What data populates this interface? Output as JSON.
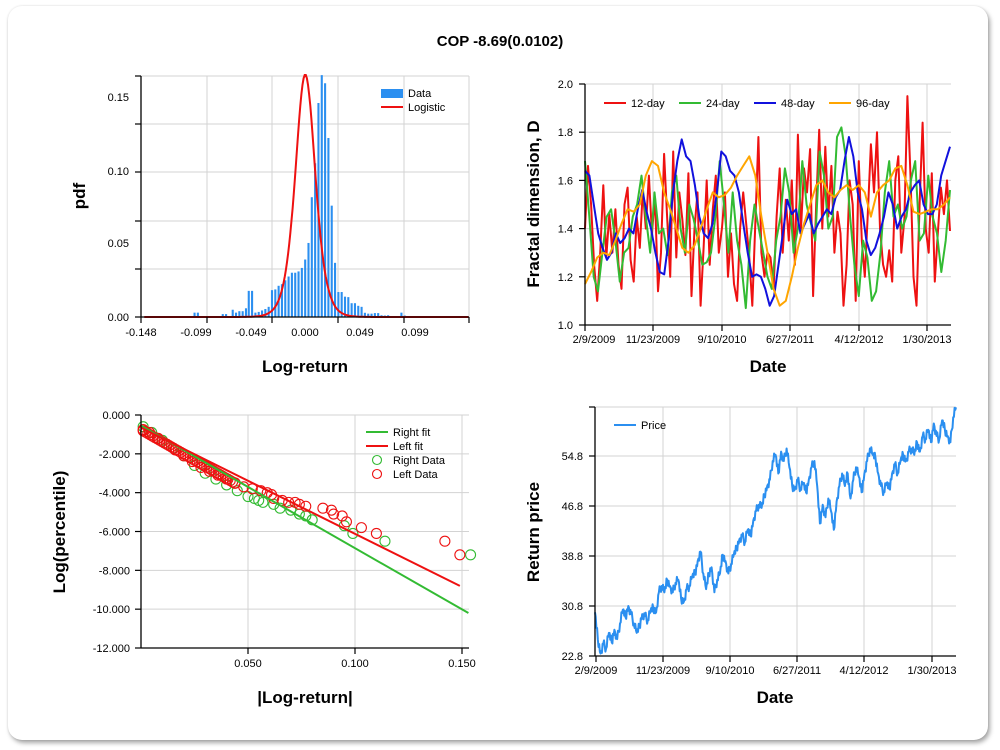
{
  "title": "COP -8.69(0.0102)",
  "chart_data": [
    {
      "id": "pdf",
      "type": "bar",
      "xlabel": "Log-return",
      "ylabel": "pdf",
      "xlim": [
        -0.148,
        0.1485
      ],
      "ylim": [
        0,
        0.166
      ],
      "x_tick_labels": [
        "-0.148",
        "-0.099",
        "-0.049",
        "0.000",
        "0.049",
        "0.099"
      ],
      "y_tick_labels": [
        "0.15",
        "0.10",
        "0.05",
        "0.00"
      ],
      "grid": true,
      "legend_position": "top-right",
      "legend": [
        "Data",
        "Logistic"
      ],
      "bin_width": 0.00297,
      "bins_x": [
        -0.0995,
        -0.0965,
        -0.074,
        -0.071,
        -0.065,
        -0.062,
        -0.059,
        -0.056,
        -0.053,
        -0.0505,
        -0.0475,
        -0.0445,
        -0.0415,
        -0.0385,
        -0.0355,
        -0.0325,
        -0.0295,
        -0.0265,
        -0.0235,
        -0.0205,
        -0.0175,
        -0.0145,
        -0.0115,
        -0.0085,
        -0.0055,
        -0.0025,
        0.0005,
        0.0035,
        0.0065,
        0.0095,
        0.0125,
        0.0155,
        0.0185,
        0.0215,
        0.0245,
        0.0275,
        0.0305,
        0.0335,
        0.0365,
        0.0395,
        0.0425,
        0.0455,
        0.0485,
        0.0515,
        0.0545,
        0.0575,
        0.0605,
        0.0635,
        0.0665,
        0.0695,
        0.0725,
        0.0755,
        0.0875,
        0.0905
      ],
      "bins_y": [
        0.003,
        0.003,
        0.002,
        0.002,
        0.005,
        0.003,
        0.004,
        0.004,
        0.006,
        0.018,
        0.018,
        0.003,
        0.0035,
        0.0045,
        0.0055,
        0.007,
        0.0185,
        0.019,
        0.0215,
        0.0226,
        0.0253,
        0.0279,
        0.0305,
        0.0305,
        0.0314,
        0.0338,
        0.0396,
        0.051,
        0.0825,
        0.1059,
        0.1474,
        0.1666,
        0.161,
        0.1233,
        0.0767,
        0.0373,
        0.0172,
        0.0172,
        0.014,
        0.0137,
        0.0095,
        0.0095,
        0.0077,
        0.007,
        0.0029,
        0.0023,
        0.0023,
        0.0027,
        0.0027,
        0.0012,
        0.001,
        0.0012,
        0.003,
        0.001
      ],
      "logistic": {
        "mu": 0.0005,
        "s": 0.006,
        "peak": 0.167
      }
    },
    {
      "id": "fractal",
      "type": "line",
      "xlabel": "Date",
      "ylabel": "Fractal dimension, D",
      "ylim": [
        1.0,
        2.0
      ],
      "x_tick_labels": [
        "2/9/2009",
        "11/23/2009",
        "9/10/2010",
        "6/27/2011",
        "4/12/2012",
        "1/30/2013"
      ],
      "y_tick_labels": [
        "1.0",
        "1.2",
        "1.4",
        "1.6",
        "1.8",
        "2.0"
      ],
      "grid": true,
      "legend_position": "top",
      "series": [
        {
          "name": "12-day",
          "color": "#ee1111",
          "values": [
            1.4,
            1.66,
            1.5,
            1.25,
            1.1,
            1.3,
            1.58,
            1.28,
            1.46,
            1.3,
            1.48,
            1.25,
            1.15,
            1.5,
            1.57,
            1.27,
            1.18,
            1.45,
            1.32,
            1.56,
            1.4,
            1.62,
            1.38,
            1.53,
            1.14,
            1.3,
            1.71,
            1.45,
            1.2,
            1.72,
            1.28,
            1.55,
            1.44,
            1.29,
            1.63,
            1.12,
            1.4,
            1.55,
            1.08,
            1.32,
            1.6,
            1.25,
            1.48,
            1.62,
            1.3,
            1.4,
            1.55,
            1.2,
            1.38,
            1.17,
            1.1,
            1.4,
            1.55,
            1.42,
            1.28,
            1.08,
            1.42,
            1.78,
            1.3,
            1.2,
            1.3,
            1.28,
            1.15,
            1.45,
            1.65,
            1.3,
            1.52,
            1.35,
            1.6,
            1.25,
            1.79,
            1.4,
            1.65,
            1.55,
            1.73,
            1.12,
            1.5,
            1.81,
            1.4,
            1.74,
            1.45,
            1.66,
            1.3,
            1.47,
            1.38,
            1.08,
            1.25,
            1.6,
            1.5,
            1.1,
            1.68,
            1.35,
            1.2,
            1.47,
            1.75,
            1.55,
            1.8,
            1.4,
            1.25,
            1.2,
            1.31,
            1.18,
            1.6,
            1.7,
            1.3,
            1.44,
            1.95,
            1.62,
            1.2,
            1.08,
            1.5,
            1.84,
            1.4,
            1.3,
            1.63,
            1.18,
            1.38,
            1.57,
            1.46,
            1.6,
            1.39
          ]
        },
        {
          "name": "24-day",
          "color": "#33bb33",
          "values": [
            1.68,
            1.45,
            1.2,
            1.14,
            1.3,
            1.45,
            1.48,
            1.35,
            1.18,
            1.3,
            1.32,
            1.45,
            1.5,
            1.62,
            1.45,
            1.3,
            1.55,
            1.38,
            1.4,
            1.29,
            1.55,
            1.62,
            1.4,
            1.3,
            1.5,
            1.44,
            1.35,
            1.25,
            1.26,
            1.3,
            1.45,
            1.68,
            1.5,
            1.3,
            1.55,
            1.35,
            1.25,
            1.07,
            1.35,
            1.5,
            1.4,
            1.3,
            1.2,
            1.15,
            1.35,
            1.45,
            1.65,
            1.55,
            1.3,
            1.4,
            1.68,
            1.5,
            1.42,
            1.35,
            1.72,
            1.62,
            1.4,
            1.45,
            1.78,
            1.82,
            1.7,
            1.45,
            1.25,
            1.12,
            1.35,
            1.28,
            1.1,
            1.14,
            1.3,
            1.55,
            1.68,
            1.45,
            1.5,
            1.4,
            1.45,
            1.6,
            1.68,
            1.35,
            1.38,
            1.62,
            1.45,
            1.38,
            1.22,
            1.35,
            1.56
          ]
        },
        {
          "name": "48-day",
          "color": "#1111dd",
          "values": [
            1.64,
            1.62,
            1.5,
            1.38,
            1.32,
            1.27,
            1.3,
            1.38,
            1.34,
            1.36,
            1.4,
            1.38,
            1.48,
            1.56,
            1.47,
            1.4,
            1.3,
            1.22,
            1.21,
            1.35,
            1.55,
            1.68,
            1.77,
            1.7,
            1.68,
            1.58,
            1.45,
            1.38,
            1.36,
            1.42,
            1.55,
            1.72,
            1.7,
            1.64,
            1.62,
            1.55,
            1.42,
            1.3,
            1.2,
            1.21,
            1.2,
            1.15,
            1.08,
            1.12,
            1.25,
            1.38,
            1.52,
            1.46,
            1.48,
            1.38,
            1.42,
            1.46,
            1.38,
            1.42,
            1.45,
            1.48,
            1.46,
            1.53,
            1.56,
            1.68,
            1.78,
            1.7,
            1.55,
            1.48,
            1.35,
            1.29,
            1.32,
            1.38,
            1.45,
            1.55,
            1.5,
            1.4,
            1.45,
            1.48,
            1.55,
            1.58,
            1.6,
            1.5,
            1.46,
            1.46,
            1.5,
            1.62,
            1.68,
            1.74
          ]
        },
        {
          "name": "96-day",
          "color": "#ffa500",
          "values": [
            1.17,
            1.22,
            1.28,
            1.3,
            1.29,
            1.35,
            1.42,
            1.48,
            1.47,
            1.5,
            1.62,
            1.68,
            1.66,
            1.55,
            1.48,
            1.4,
            1.32,
            1.3,
            1.33,
            1.4,
            1.48,
            1.55,
            1.53,
            1.54,
            1.57,
            1.62,
            1.66,
            1.7,
            1.62,
            1.45,
            1.3,
            1.15,
            1.08,
            1.1,
            1.2,
            1.32,
            1.42,
            1.5,
            1.58,
            1.6,
            1.55,
            1.53,
            1.56,
            1.58,
            1.56,
            1.58,
            1.55,
            1.45,
            1.55,
            1.58,
            1.6,
            1.65,
            1.66,
            1.58,
            1.47,
            1.46,
            1.47,
            1.48,
            1.48,
            1.5,
            1.53
          ]
        }
      ]
    },
    {
      "id": "tail",
      "type": "scatter",
      "xlabel": "|Log-return|",
      "ylabel": "Log(percentile)",
      "xlim": [
        0,
        0.153
      ],
      "ylim": [
        -12.0,
        0.0
      ],
      "x_tick_labels": [
        "0.050",
        "0.100",
        "0.150"
      ],
      "y_tick_labels": [
        "0.000",
        "-2.000",
        "-4.000",
        "-6.000",
        "-8.000",
        "-10.000",
        "-12.000"
      ],
      "grid": true,
      "legend_position": "top-right",
      "series": [
        {
          "name": "Right fit",
          "type": "line",
          "color": "#33bb33",
          "points": [
            [
              0.0,
              -0.55
            ],
            [
              0.153,
              -10.2
            ]
          ]
        },
        {
          "name": "Left fit",
          "type": "line",
          "color": "#ee1111",
          "points": [
            [
              0.0,
              -0.65
            ],
            [
              0.149,
              -8.8
            ]
          ]
        },
        {
          "name": "Right Data",
          "type": "scatter",
          "color": "#33bb33",
          "points": [
            [
              0.001,
              -0.6
            ],
            [
              0.005,
              -0.9
            ],
            [
              0.01,
              -1.3
            ],
            [
              0.015,
              -1.7
            ],
            [
              0.02,
              -2.1
            ],
            [
              0.025,
              -2.6
            ],
            [
              0.03,
              -3.0
            ],
            [
              0.035,
              -3.3
            ],
            [
              0.04,
              -3.6
            ],
            [
              0.045,
              -3.9
            ],
            [
              0.05,
              -4.2
            ],
            [
              0.053,
              -4.3
            ],
            [
              0.055,
              -4.4
            ],
            [
              0.057,
              -4.5
            ],
            [
              0.062,
              -4.6
            ],
            [
              0.065,
              -4.8
            ],
            [
              0.07,
              -4.9
            ],
            [
              0.074,
              -5.1
            ],
            [
              0.077,
              -5.2
            ],
            [
              0.08,
              -5.4
            ],
            [
              0.095,
              -5.7
            ],
            [
              0.099,
              -6.1
            ],
            [
              0.114,
              -6.5
            ],
            [
              0.154,
              -7.2
            ]
          ]
        },
        {
          "name": "Left Data",
          "type": "scatter",
          "color": "#ee1111",
          "points": [
            [
              0.001,
              -0.75
            ],
            [
              0.004,
              -0.9
            ],
            [
              0.008,
              -1.2
            ],
            [
              0.012,
              -1.5
            ],
            [
              0.016,
              -1.8
            ],
            [
              0.02,
              -2.1
            ],
            [
              0.024,
              -2.4
            ],
            [
              0.028,
              -2.7
            ],
            [
              0.032,
              -2.9
            ],
            [
              0.036,
              -3.1
            ],
            [
              0.04,
              -3.3
            ],
            [
              0.044,
              -3.5
            ],
            [
              0.048,
              -3.7
            ],
            [
              0.052,
              -3.8
            ],
            [
              0.056,
              -3.9
            ],
            [
              0.059,
              -4.0
            ],
            [
              0.061,
              -4.1
            ],
            [
              0.062,
              -4.3
            ],
            [
              0.066,
              -4.4
            ],
            [
              0.069,
              -4.5
            ],
            [
              0.072,
              -4.5
            ],
            [
              0.074,
              -4.6
            ],
            [
              0.077,
              -4.7
            ],
            [
              0.085,
              -4.8
            ],
            [
              0.089,
              -4.9
            ],
            [
              0.09,
              -5.1
            ],
            [
              0.094,
              -5.2
            ],
            [
              0.096,
              -5.5
            ],
            [
              0.103,
              -5.8
            ],
            [
              0.11,
              -6.1
            ],
            [
              0.142,
              -6.5
            ],
            [
              0.149,
              -7.2
            ]
          ]
        }
      ],
      "legend": [
        "Right fit",
        "Left fit",
        "Right Data",
        "Left Data"
      ]
    },
    {
      "id": "price",
      "type": "line",
      "xlabel": "Date",
      "ylabel": "Return price",
      "ylim": [
        22.8,
        62.6
      ],
      "x_tick_labels": [
        "2/9/2009",
        "11/23/2009",
        "9/10/2010",
        "6/27/2011",
        "4/12/2012",
        "1/30/2013"
      ],
      "y_tick_labels": [
        "22.8",
        "30.8",
        "38.8",
        "46.8",
        "54.8"
      ],
      "grid": true,
      "legend_position": "top-left",
      "series": [
        {
          "name": "Price",
          "color": "#2b8ff0",
          "values": [
            29.8,
            25.5,
            23.2,
            24.8,
            24.0,
            26.5,
            25.0,
            27.0,
            25.5,
            28.0,
            30.2,
            29.0,
            30.8,
            29.5,
            28.0,
            26.5,
            27.5,
            29.5,
            29.2,
            28.5,
            30.0,
            30.5,
            29.8,
            33.0,
            34.0,
            33.0,
            35.0,
            34.0,
            33.0,
            34.5,
            35.0,
            32.0,
            31.5,
            33.5,
            34.0,
            35.5,
            36.0,
            38.0,
            39.5,
            36.0,
            33.5,
            36.0,
            37.0,
            33.0,
            35.0,
            36.0,
            39.0,
            38.0,
            36.0,
            37.5,
            39.0,
            40.0,
            41.5,
            42.0,
            41.0,
            43.0,
            42.0,
            44.5,
            46.0,
            47.0,
            46.5,
            48.5,
            50.0,
            51.0,
            54.0,
            55.0,
            52.0,
            55.5,
            54.0,
            56.0,
            53.0,
            50.0,
            49.5,
            51.0,
            49.5,
            50.5,
            49.0,
            51.0,
            53.0,
            54.0,
            50.0,
            44.0,
            47.0,
            45.0,
            48.0,
            46.0,
            43.0,
            47.5,
            50.0,
            52.0,
            50.0,
            52.0,
            48.0,
            51.0,
            53.0,
            51.5,
            49.0,
            52.0,
            54.0,
            56.0,
            55.0,
            54.5,
            52.0,
            50.0,
            49.0,
            50.5,
            49.5,
            52.0,
            53.5,
            52.0,
            54.0,
            55.0,
            54.0,
            55.5,
            56.0,
            55.0,
            57.0,
            55.5,
            58.0,
            57.5,
            59.0,
            57.0,
            60.0,
            58.0,
            57.5,
            60.5,
            59.0,
            58.0,
            57.0,
            61.0,
            62.6
          ]
        }
      ]
    }
  ]
}
